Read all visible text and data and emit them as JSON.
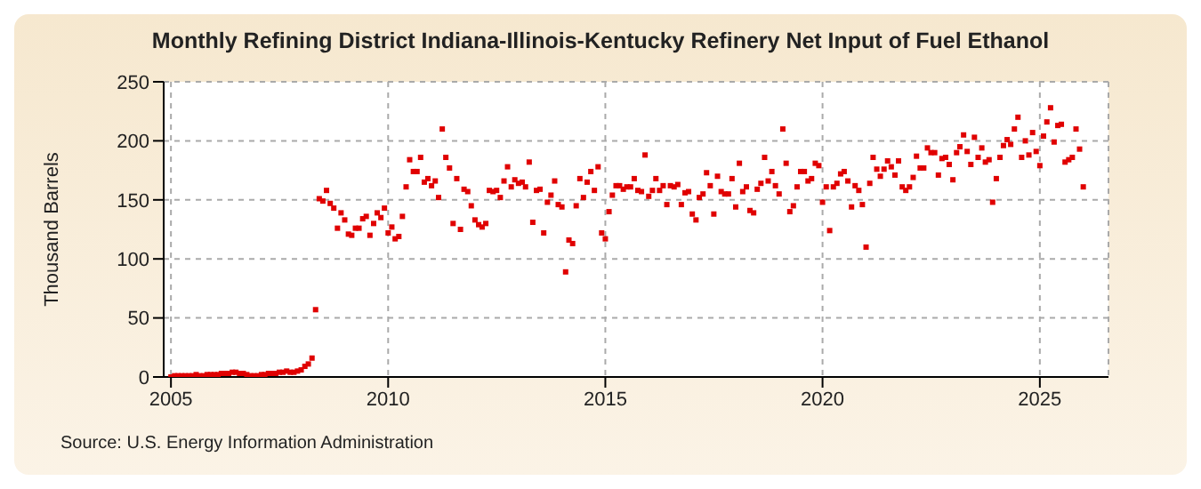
{
  "chart_data": {
    "type": "scatter",
    "title": "Monthly Refining District Indiana-Illinois-Kentucky Refinery Net Input of Fuel Ethanol",
    "ylabel": "Thousand Barrels",
    "annotations": [
      "Source: U.S. Energy Information Administration"
    ],
    "series": [
      {
        "color": "#e00000",
        "x": [
          "2005-01",
          "2005-02",
          "2005-03",
          "2005-04",
          "2005-05",
          "2005-06",
          "2005-07",
          "2005-08",
          "2005-09",
          "2005-10",
          "2005-11",
          "2005-12",
          "2006-01",
          "2006-02",
          "2006-03",
          "2006-04",
          "2006-05",
          "2006-06",
          "2006-07",
          "2006-08",
          "2006-09",
          "2006-10",
          "2006-11",
          "2006-12",
          "2007-01",
          "2007-02",
          "2007-03",
          "2007-04",
          "2007-05",
          "2007-06",
          "2007-07",
          "2007-08",
          "2007-09",
          "2007-10",
          "2007-11",
          "2007-12",
          "2008-01",
          "2008-02",
          "2008-03",
          "2008-04",
          "2008-05",
          "2008-06",
          "2008-07",
          "2008-08",
          "2008-09",
          "2008-10",
          "2008-11",
          "2008-12",
          "2009-01",
          "2009-02",
          "2009-03",
          "2009-04",
          "2009-05",
          "2009-06",
          "2009-07",
          "2009-08",
          "2009-09",
          "2009-10",
          "2009-11",
          "2009-12",
          "2010-01",
          "2010-02",
          "2010-03",
          "2010-04",
          "2010-05",
          "2010-06",
          "2010-07",
          "2010-08",
          "2010-09",
          "2010-10",
          "2010-11",
          "2010-12",
          "2011-01",
          "2011-02",
          "2011-03",
          "2011-04",
          "2011-05",
          "2011-06",
          "2011-07",
          "2011-08",
          "2011-09",
          "2011-10",
          "2011-11",
          "2011-12",
          "2012-01",
          "2012-02",
          "2012-03",
          "2012-04",
          "2012-05",
          "2012-06",
          "2012-07",
          "2012-08",
          "2012-09",
          "2012-10",
          "2012-11",
          "2012-12",
          "2013-01",
          "2013-02",
          "2013-03",
          "2013-04",
          "2013-05",
          "2013-06",
          "2013-07",
          "2013-08",
          "2013-09",
          "2013-10",
          "2013-11",
          "2013-12",
          "2014-01",
          "2014-02",
          "2014-03",
          "2014-04",
          "2014-05",
          "2014-06",
          "2014-07",
          "2014-08",
          "2014-09",
          "2014-10",
          "2014-11",
          "2014-12",
          "2015-01",
          "2015-02",
          "2015-03",
          "2015-04",
          "2015-05",
          "2015-06",
          "2015-07",
          "2015-08",
          "2015-09",
          "2015-10",
          "2015-11",
          "2015-12",
          "2016-01",
          "2016-02",
          "2016-03",
          "2016-04",
          "2016-05",
          "2016-06",
          "2016-07",
          "2016-08",
          "2016-09",
          "2016-10",
          "2016-11",
          "2016-12",
          "2017-01",
          "2017-02",
          "2017-03",
          "2017-04",
          "2017-05",
          "2017-06",
          "2017-07",
          "2017-08",
          "2017-09",
          "2017-10",
          "2017-11",
          "2017-12",
          "2018-01",
          "2018-02",
          "2018-03",
          "2018-04",
          "2018-05",
          "2018-06",
          "2018-07",
          "2018-08",
          "2018-09",
          "2018-10",
          "2018-11",
          "2018-12",
          "2019-01",
          "2019-02",
          "2019-03",
          "2019-04",
          "2019-05",
          "2019-06",
          "2019-07",
          "2019-08",
          "2019-09",
          "2019-10",
          "2019-11",
          "2019-12",
          "2020-01",
          "2020-02",
          "2020-03",
          "2020-04",
          "2020-05",
          "2020-06",
          "2020-07",
          "2020-08",
          "2020-09",
          "2020-10",
          "2020-11",
          "2020-12",
          "2021-01",
          "2021-02",
          "2021-03",
          "2021-04",
          "2021-05",
          "2021-06",
          "2021-07",
          "2021-08",
          "2021-09",
          "2021-10",
          "2021-11",
          "2021-12",
          "2022-01",
          "2022-02",
          "2022-03",
          "2022-04",
          "2022-05",
          "2022-06",
          "2022-07",
          "2022-08",
          "2022-09",
          "2022-10",
          "2022-11",
          "2022-12",
          "2023-01",
          "2023-02",
          "2023-03",
          "2023-04",
          "2023-05",
          "2023-06",
          "2023-07",
          "2023-08",
          "2023-09",
          "2023-10",
          "2023-11",
          "2023-12",
          "2024-01",
          "2024-02",
          "2024-03",
          "2024-04",
          "2024-05",
          "2024-06",
          "2024-07",
          "2024-08",
          "2024-09",
          "2024-10",
          "2024-11",
          "2024-12",
          "2025-01",
          "2025-02",
          "2025-03",
          "2025-04",
          "2025-05",
          "2025-06",
          "2025-07",
          "2025-08",
          "2025-09",
          "2025-10",
          "2025-11",
          "2025-12",
          "2026-01"
        ],
        "values": [
          0,
          1,
          1,
          1,
          1,
          1,
          1,
          2,
          1,
          1,
          2,
          2,
          2,
          2,
          3,
          3,
          3,
          4,
          4,
          3,
          3,
          2,
          1,
          1,
          1,
          2,
          2,
          3,
          3,
          3,
          4,
          4,
          5,
          4,
          4,
          5,
          6,
          9,
          11,
          16,
          57,
          151,
          149,
          158,
          147,
          143,
          126,
          139,
          133,
          121,
          120,
          126,
          126,
          134,
          136,
          120,
          130,
          139,
          135,
          143,
          122,
          127,
          117,
          119,
          136,
          161,
          184,
          174,
          174,
          186,
          165,
          168,
          162,
          166,
          152,
          210,
          186,
          177,
          130,
          168,
          125,
          159,
          157,
          145,
          133,
          129,
          127,
          130,
          158,
          157,
          158,
          152,
          166,
          178,
          161,
          167,
          164,
          165,
          161,
          182,
          131,
          158,
          159,
          122,
          148,
          154,
          166,
          146,
          144,
          89,
          116,
          113,
          145,
          168,
          152,
          165,
          174,
          158,
          178,
          122,
          117,
          140,
          154,
          162,
          162,
          159,
          161,
          161,
          168,
          158,
          157,
          188,
          153,
          158,
          168,
          158,
          162,
          146,
          162,
          161,
          163,
          146,
          156,
          157,
          138,
          133,
          152,
          155,
          173,
          162,
          138,
          170,
          157,
          155,
          155,
          168,
          144,
          181,
          157,
          161,
          141,
          139,
          159,
          164,
          186,
          166,
          174,
          162,
          155,
          210,
          181,
          140,
          145,
          161,
          174,
          174,
          166,
          168,
          181,
          179,
          148,
          161,
          124,
          161,
          164,
          172,
          174,
          166,
          144,
          162,
          158,
          146,
          110,
          164,
          186,
          176,
          170,
          176,
          183,
          178,
          171,
          183,
          161,
          158,
          161,
          169,
          187,
          177,
          177,
          194,
          190,
          190,
          171,
          185,
          186,
          180,
          167,
          190,
          195,
          205,
          191,
          180,
          203,
          186,
          194,
          182,
          184,
          148,
          168,
          186,
          196,
          201,
          197,
          210,
          220,
          186,
          200,
          188,
          207,
          191,
          179,
          204,
          216,
          228,
          199,
          213,
          214,
          182,
          184,
          186,
          210,
          193,
          161
        ]
      }
    ],
    "xlim": [
      "2004-11",
      "2026-08"
    ],
    "xticks": [
      "2005",
      "2010",
      "2015",
      "2020",
      "2025"
    ],
    "ylim": [
      0,
      250
    ],
    "yticks": [
      0,
      50,
      100,
      150,
      200,
      250
    ],
    "grid": true,
    "marker": "square",
    "legend": false
  }
}
